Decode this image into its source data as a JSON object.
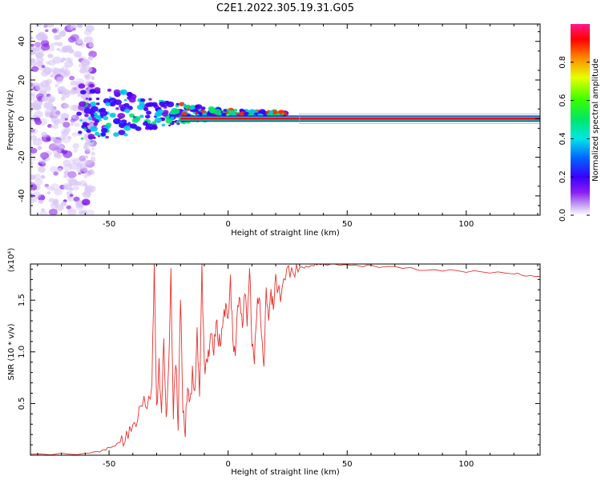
{
  "title": "C2E1.2022.305.19.31.G05",
  "colors": {
    "line": "#e8312e",
    "axis": "#000000"
  },
  "chart_data": [
    {
      "type": "heatmap",
      "xlabel": "Height of straight line (km)",
      "ylabel": "Frequency (Hz)",
      "xlim": [
        -83,
        131
      ],
      "ylim": [
        -50,
        49
      ],
      "xticks": [
        -50,
        0,
        50,
        100
      ],
      "yticks": [
        -40,
        -20,
        0,
        20,
        40
      ],
      "colorbar": {
        "label": "Normalized spectral amplitude",
        "range": [
          0,
          1
        ],
        "ticks": [
          "0.0",
          "0.2",
          "0.4",
          "0.6",
          "0.8"
        ]
      },
      "features": {
        "carrier_frequency_hz": 0,
        "noise_region_km": [
          -83,
          -60
        ],
        "turbulent_region_km": [
          -60,
          20
        ],
        "clean_region_km": [
          20,
          131
        ]
      }
    },
    {
      "type": "line",
      "xlabel": "Height of straight line (km)",
      "ylabel": "SNR (10 * v/v)",
      "yscale_label": "(x10⁴)",
      "xlim": [
        -83,
        131
      ],
      "ylim": [
        0,
        1.85
      ],
      "xticks": [
        -50,
        0,
        50,
        100
      ],
      "yticks": [
        "0.5",
        "1.0",
        "1.5"
      ],
      "series": [
        {
          "name": "SNR",
          "x": [
            -83,
            -70,
            -60,
            -55,
            -52,
            -50,
            -48,
            -46,
            -44,
            -42,
            -40,
            -38,
            -36,
            -34,
            -32,
            -31,
            -30,
            -29,
            -28,
            -27,
            -26,
            -25,
            -24,
            -23,
            -22,
            -21,
            -20,
            -19,
            -18,
            -17,
            -16,
            -15,
            -14,
            -13,
            -12,
            -11,
            -10,
            -9,
            -8,
            -7,
            -6,
            -5,
            -4,
            -3,
            -2,
            -1,
            0,
            1,
            2,
            3,
            4,
            5,
            6,
            7,
            8,
            9,
            10,
            11,
            12,
            13,
            14,
            15,
            16,
            17,
            18,
            19,
            20,
            22,
            24,
            26,
            28,
            30,
            32,
            34,
            36,
            38,
            40,
            45,
            50,
            55,
            60,
            70,
            80,
            90,
            100,
            110,
            120,
            125,
            131
          ],
          "y": [
            0.01,
            0.01,
            0.02,
            0.03,
            0.05,
            0.07,
            0.08,
            0.12,
            0.15,
            0.2,
            0.3,
            0.35,
            0.55,
            0.45,
            0.7,
            1.82,
            0.4,
            0.9,
            0.35,
            1.1,
            0.3,
            0.8,
            1.75,
            0.4,
            0.95,
            0.3,
            1.55,
            0.5,
            0.25,
            0.7,
            0.45,
            0.8,
            0.6,
            1.2,
            0.55,
            1.82,
            0.8,
            0.85,
            1.0,
            1.2,
            1.0,
            1.3,
            1.1,
            1.15,
            1.35,
            1.4,
            1.3,
            1.7,
            1.1,
            0.95,
            1.42,
            1.5,
            1.25,
            1.6,
            1.3,
            1.82,
            1.1,
            0.95,
            1.4,
            1.6,
            1.15,
            0.85,
            1.55,
            1.3,
            1.6,
            1.4,
            1.7,
            1.55,
            1.75,
            1.78,
            1.78,
            1.82,
            1.82,
            1.83,
            1.84,
            1.85,
            1.85,
            1.84,
            1.84,
            1.83,
            1.83,
            1.82,
            1.8,
            1.79,
            1.78,
            1.77,
            1.76,
            1.74,
            1.73
          ]
        }
      ]
    }
  ]
}
